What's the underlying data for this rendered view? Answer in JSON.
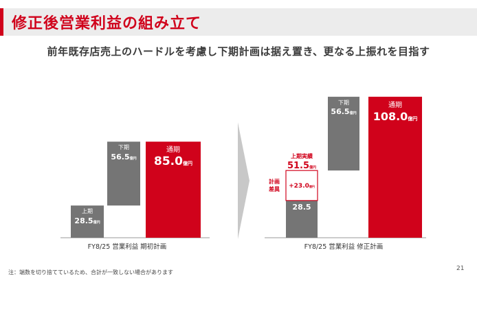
{
  "header": {
    "title": "修正後営業利益の組み立て",
    "subtitle": "前年既存店売上のハードルを考慮し下期計画は据え置き、更なる上振れを目指す"
  },
  "colors": {
    "accent": "#d0021b",
    "gray": "#757575"
  },
  "chart_data": [
    {
      "type": "bar",
      "subtype": "waterfall",
      "xlabel": "FY8/25 営業利益 期初計画",
      "unit": "億円",
      "segments": [
        {
          "label": "上期",
          "value_text": "28.5",
          "unit": "億円",
          "start": 0,
          "end": 28.5
        },
        {
          "label": "下期",
          "value_text": "56.5",
          "unit": "億円",
          "start": 28.5,
          "end": 85.0
        },
        {
          "label": "通期",
          "value_text": "85.0",
          "unit": "億円",
          "start": 0,
          "end": 85.0
        }
      ]
    },
    {
      "type": "bar",
      "subtype": "waterfall",
      "xlabel": "FY8/25 営業利益 修正計画",
      "unit": "億円",
      "segments": [
        {
          "label": "",
          "value_text": "28.5",
          "unit": "",
          "start": 0,
          "end": 28.5
        },
        {
          "label": "計画差異",
          "value_text": "+23.0",
          "unit": "億円",
          "start": 28.5,
          "end": 51.5
        },
        {
          "label": "下期",
          "value_text": "56.5",
          "unit": "億円",
          "start": 51.5,
          "end": 108.0
        },
        {
          "label": "通期",
          "value_text": "108.0",
          "unit": "億円",
          "start": 0,
          "end": 108.0
        }
      ],
      "annotations": [
        {
          "label": "上期実績",
          "value_text": "51.5",
          "unit": "億円"
        }
      ]
    }
  ],
  "footnote": "注：端数を切り捨てているため、合計が一致しない場合があります",
  "page_number": "21"
}
